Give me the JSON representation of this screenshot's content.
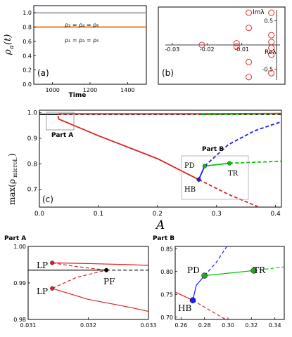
{
  "chart_data": [
    {
      "type": "line",
      "panel": "(a)",
      "xlabel": "Time",
      "ylabel": "ρa(t)",
      "xlim": [
        900,
        1500
      ],
      "ylim": [
        0,
        1.1
      ],
      "x_ticks": [
        "1000",
        "1200",
        "1400"
      ],
      "y_ticks": [
        "0.0",
        "0.2",
        "0.4",
        "0.6",
        "0.8",
        "1.0"
      ],
      "series": [
        {
          "name": "ρ2 = ρ4 = ρ6",
          "color": "#a8a8b8",
          "x": [
            900,
            1500
          ],
          "y": [
            1.0,
            1.0
          ]
        },
        {
          "name": "ρ1 = ρ3 = ρ5",
          "color": "#e8822a",
          "x": [
            900,
            1500
          ],
          "y": [
            0.8,
            0.8
          ]
        }
      ]
    },
    {
      "type": "scatter",
      "panel": "(b)",
      "xlabel": "Reλ",
      "ylabel": "Imλ",
      "xlim": [
        -0.032,
        0.001
      ],
      "ylim": [
        -0.72,
        0.72
      ],
      "x_ticks": [
        "-0.03",
        "-0.02",
        "-0.01"
      ],
      "y_ticks": [
        "0.5",
        "-0.5"
      ],
      "color": "#e03030",
      "points": [
        {
          "x": -0.0215,
          "y": 0.0
        },
        {
          "x": -0.0115,
          "y": 0.035
        },
        {
          "x": -0.0115,
          "y": -0.03
        },
        {
          "x": -0.008,
          "y": 0.66
        },
        {
          "x": -0.008,
          "y": 0.35
        },
        {
          "x": -0.008,
          "y": -0.35
        },
        {
          "x": -0.008,
          "y": -0.66
        },
        {
          "x": -0.0015,
          "y": 0.66
        },
        {
          "x": -0.0015,
          "y": 0.2
        },
        {
          "x": -0.0015,
          "y": 0.06
        },
        {
          "x": -0.0015,
          "y": -0.06
        },
        {
          "x": -0.0015,
          "y": -0.2
        },
        {
          "x": -0.0015,
          "y": -0.58
        }
      ]
    },
    {
      "type": "line",
      "panel": "(c)",
      "xlabel": "A",
      "ylabel": "max(ρmicroL)",
      "xlim": [
        0,
        0.41
      ],
      "ylim": [
        0.63,
        1.01
      ],
      "x_ticks": [
        "0.0",
        "0.1",
        "0.2",
        "0.3",
        "0.4"
      ],
      "y_ticks": [
        "0.7",
        "0.8",
        "0.9",
        "1.0"
      ],
      "annotations": [
        "Part A",
        "Part B",
        "PD",
        "TR",
        "HB"
      ],
      "series": [
        {
          "color": "#000000",
          "style": "solid",
          "x": [
            0,
            0.0314
          ],
          "y": [
            0.994,
            0.994
          ]
        },
        {
          "color": "#000000",
          "style": "dashed",
          "x": [
            0.0314,
            0.41
          ],
          "y": [
            0.994,
            0.994
          ]
        },
        {
          "color": "#e02020",
          "style": "solid",
          "x": [
            0.0314,
            0.033,
            0.27,
            0.41
          ],
          "y": [
            0.995,
            0.996,
            0.996,
            0.997
          ]
        },
        {
          "color": "#e02020",
          "style": "solid",
          "x": [
            0.0314,
            0.033,
            0.1,
            0.2,
            0.27
          ],
          "y": [
            0.988,
            0.975,
            0.91,
            0.82,
            0.738
          ]
        },
        {
          "color": "#e02020",
          "style": "dashed",
          "x": [
            0.27,
            0.32,
            0.37
          ],
          "y": [
            0.738,
            0.68,
            0.632
          ]
        },
        {
          "color": "#1a1aff",
          "style": "solid",
          "x": [
            0.27,
            0.28
          ],
          "y": [
            0.738,
            0.791
          ]
        },
        {
          "color": "#1a1aff",
          "style": "dashed",
          "x": [
            0.28,
            0.32,
            0.365,
            0.41
          ],
          "y": [
            0.791,
            0.875,
            0.93,
            0.965
          ]
        },
        {
          "color": "#00c800",
          "style": "solid",
          "x": [
            0.28,
            0.322
          ],
          "y": [
            0.791,
            0.802
          ]
        },
        {
          "color": "#00c800",
          "style": "dashed",
          "x": [
            0.322,
            0.41
          ],
          "y": [
            0.802,
            0.81
          ]
        },
        {
          "color": "#00c800",
          "style": "dashed",
          "x": [
            0.275,
            0.41
          ],
          "y": [
            0.993,
            0.997
          ]
        }
      ],
      "points": [
        {
          "label": "HB",
          "x": 0.27,
          "y": 0.738,
          "color": "#1a1aff"
        },
        {
          "label": "PD",
          "x": 0.28,
          "y": 0.791,
          "color": "#00c800"
        },
        {
          "label": "TR",
          "x": 0.322,
          "y": 0.802,
          "color": "#00c800"
        }
      ]
    },
    {
      "type": "line",
      "panel": "Part A",
      "title": "Part A",
      "xlim": [
        0.031,
        0.033
      ],
      "ylim": [
        0.98,
        1.0
      ],
      "x_ticks": [
        "0.031",
        "0.032",
        "0.033"
      ],
      "y_ticks": [
        "0.98",
        "0.99",
        "1.00"
      ],
      "annotations": [
        "LP",
        "LP",
        "PF"
      ],
      "series": [
        {
          "color": "#000000",
          "style": "solid",
          "x": [
            0.031,
            0.0323
          ],
          "y": [
            0.9935,
            0.9935
          ]
        },
        {
          "color": "#000000",
          "style": "dashed",
          "x": [
            0.0323,
            0.033
          ],
          "y": [
            0.9935,
            0.9935
          ]
        },
        {
          "color": "#e02020",
          "style": "solid",
          "x": [
            0.0314,
            0.032,
            0.0327,
            0.033
          ],
          "y": [
            0.9955,
            0.9953,
            0.995,
            0.9948
          ]
        },
        {
          "color": "#e02020",
          "style": "dashed",
          "x": [
            0.0314,
            0.0318,
            0.0323
          ],
          "y": [
            0.9955,
            0.9945,
            0.9935
          ]
        },
        {
          "color": "#e02020",
          "style": "dashed",
          "x": [
            0.0314,
            0.0318,
            0.0323
          ],
          "y": [
            0.9885,
            0.9915,
            0.9935
          ]
        },
        {
          "color": "#e02020",
          "style": "solid",
          "x": [
            0.0314,
            0.032,
            0.0327,
            0.033
          ],
          "y": [
            0.9885,
            0.9855,
            0.9833,
            0.9822
          ]
        }
      ],
      "points": [
        {
          "label": "LP",
          "x": 0.0314,
          "y": 0.9955,
          "color": "#e02020"
        },
        {
          "label": "LP",
          "x": 0.0314,
          "y": 0.9885,
          "color": "#e02020"
        },
        {
          "label": "PF",
          "x": 0.0323,
          "y": 0.9935,
          "color": "#000000"
        }
      ]
    },
    {
      "type": "line",
      "panel": "Part B",
      "title": "Part B",
      "xlim": [
        0.255,
        0.348
      ],
      "ylim": [
        0.695,
        0.855
      ],
      "x_ticks": [
        "0.26",
        "0.28",
        "0.30",
        "0.32",
        "0.34"
      ],
      "y_ticks": [
        "0.70",
        "0.75",
        "0.80",
        "0.85"
      ],
      "annotations": [
        "PD",
        "TR",
        "HB"
      ],
      "series": [
        {
          "color": "#e02020",
          "style": "solid",
          "x": [
            0.255,
            0.27
          ],
          "y": [
            0.755,
            0.737
          ]
        },
        {
          "color": "#e02020",
          "style": "dashed",
          "x": [
            0.27,
            0.298
          ],
          "y": [
            0.737,
            0.695
          ]
        },
        {
          "color": "#1a1aff",
          "style": "solid",
          "x": [
            0.27,
            0.273,
            0.28
          ],
          "y": [
            0.737,
            0.77,
            0.791
          ]
        },
        {
          "color": "#1a1aff",
          "style": "dashed",
          "x": [
            0.28,
            0.29,
            0.299
          ],
          "y": [
            0.791,
            0.82,
            0.855
          ]
        },
        {
          "color": "#00c800",
          "style": "solid",
          "x": [
            0.28,
            0.322
          ],
          "y": [
            0.791,
            0.802
          ]
        },
        {
          "color": "#00c800",
          "style": "dashed",
          "x": [
            0.322,
            0.348
          ],
          "y": [
            0.802,
            0.81
          ]
        }
      ],
      "points": [
        {
          "label": "HB",
          "x": 0.27,
          "y": 0.737,
          "color": "#1a1aff"
        },
        {
          "label": "PD",
          "x": 0.28,
          "y": 0.791,
          "color": "#2e9e2e"
        },
        {
          "label": "TR",
          "x": 0.322,
          "y": 0.802,
          "color": "#2e9e2e"
        }
      ]
    }
  ],
  "labels": {
    "a_tag": "(a)",
    "b_tag": "(b)",
    "c_tag": "(c)",
    "a_ylabel_main": "ρ",
    "a_ylabel_sub": "a",
    "a_ylabel_tail": "(t)",
    "a_xlabel": "Time",
    "a_legend_top": "ρ₂ = ρ₄ = ρ₆",
    "a_legend_bottom": "ρ₁ = ρ₃ = ρ₅",
    "b_im": "Imλ",
    "b_re": "Reλ",
    "c_xlabel": "A",
    "c_ylabel": "max(ρ",
    "c_ylabel_sub": "microL",
    "c_ylabel_tail": ")",
    "part_a": "Part A",
    "part_b": "Part B",
    "pd": "PD",
    "tr": "TR",
    "hb": "HB",
    "lp": "LP",
    "pf": "PF"
  }
}
